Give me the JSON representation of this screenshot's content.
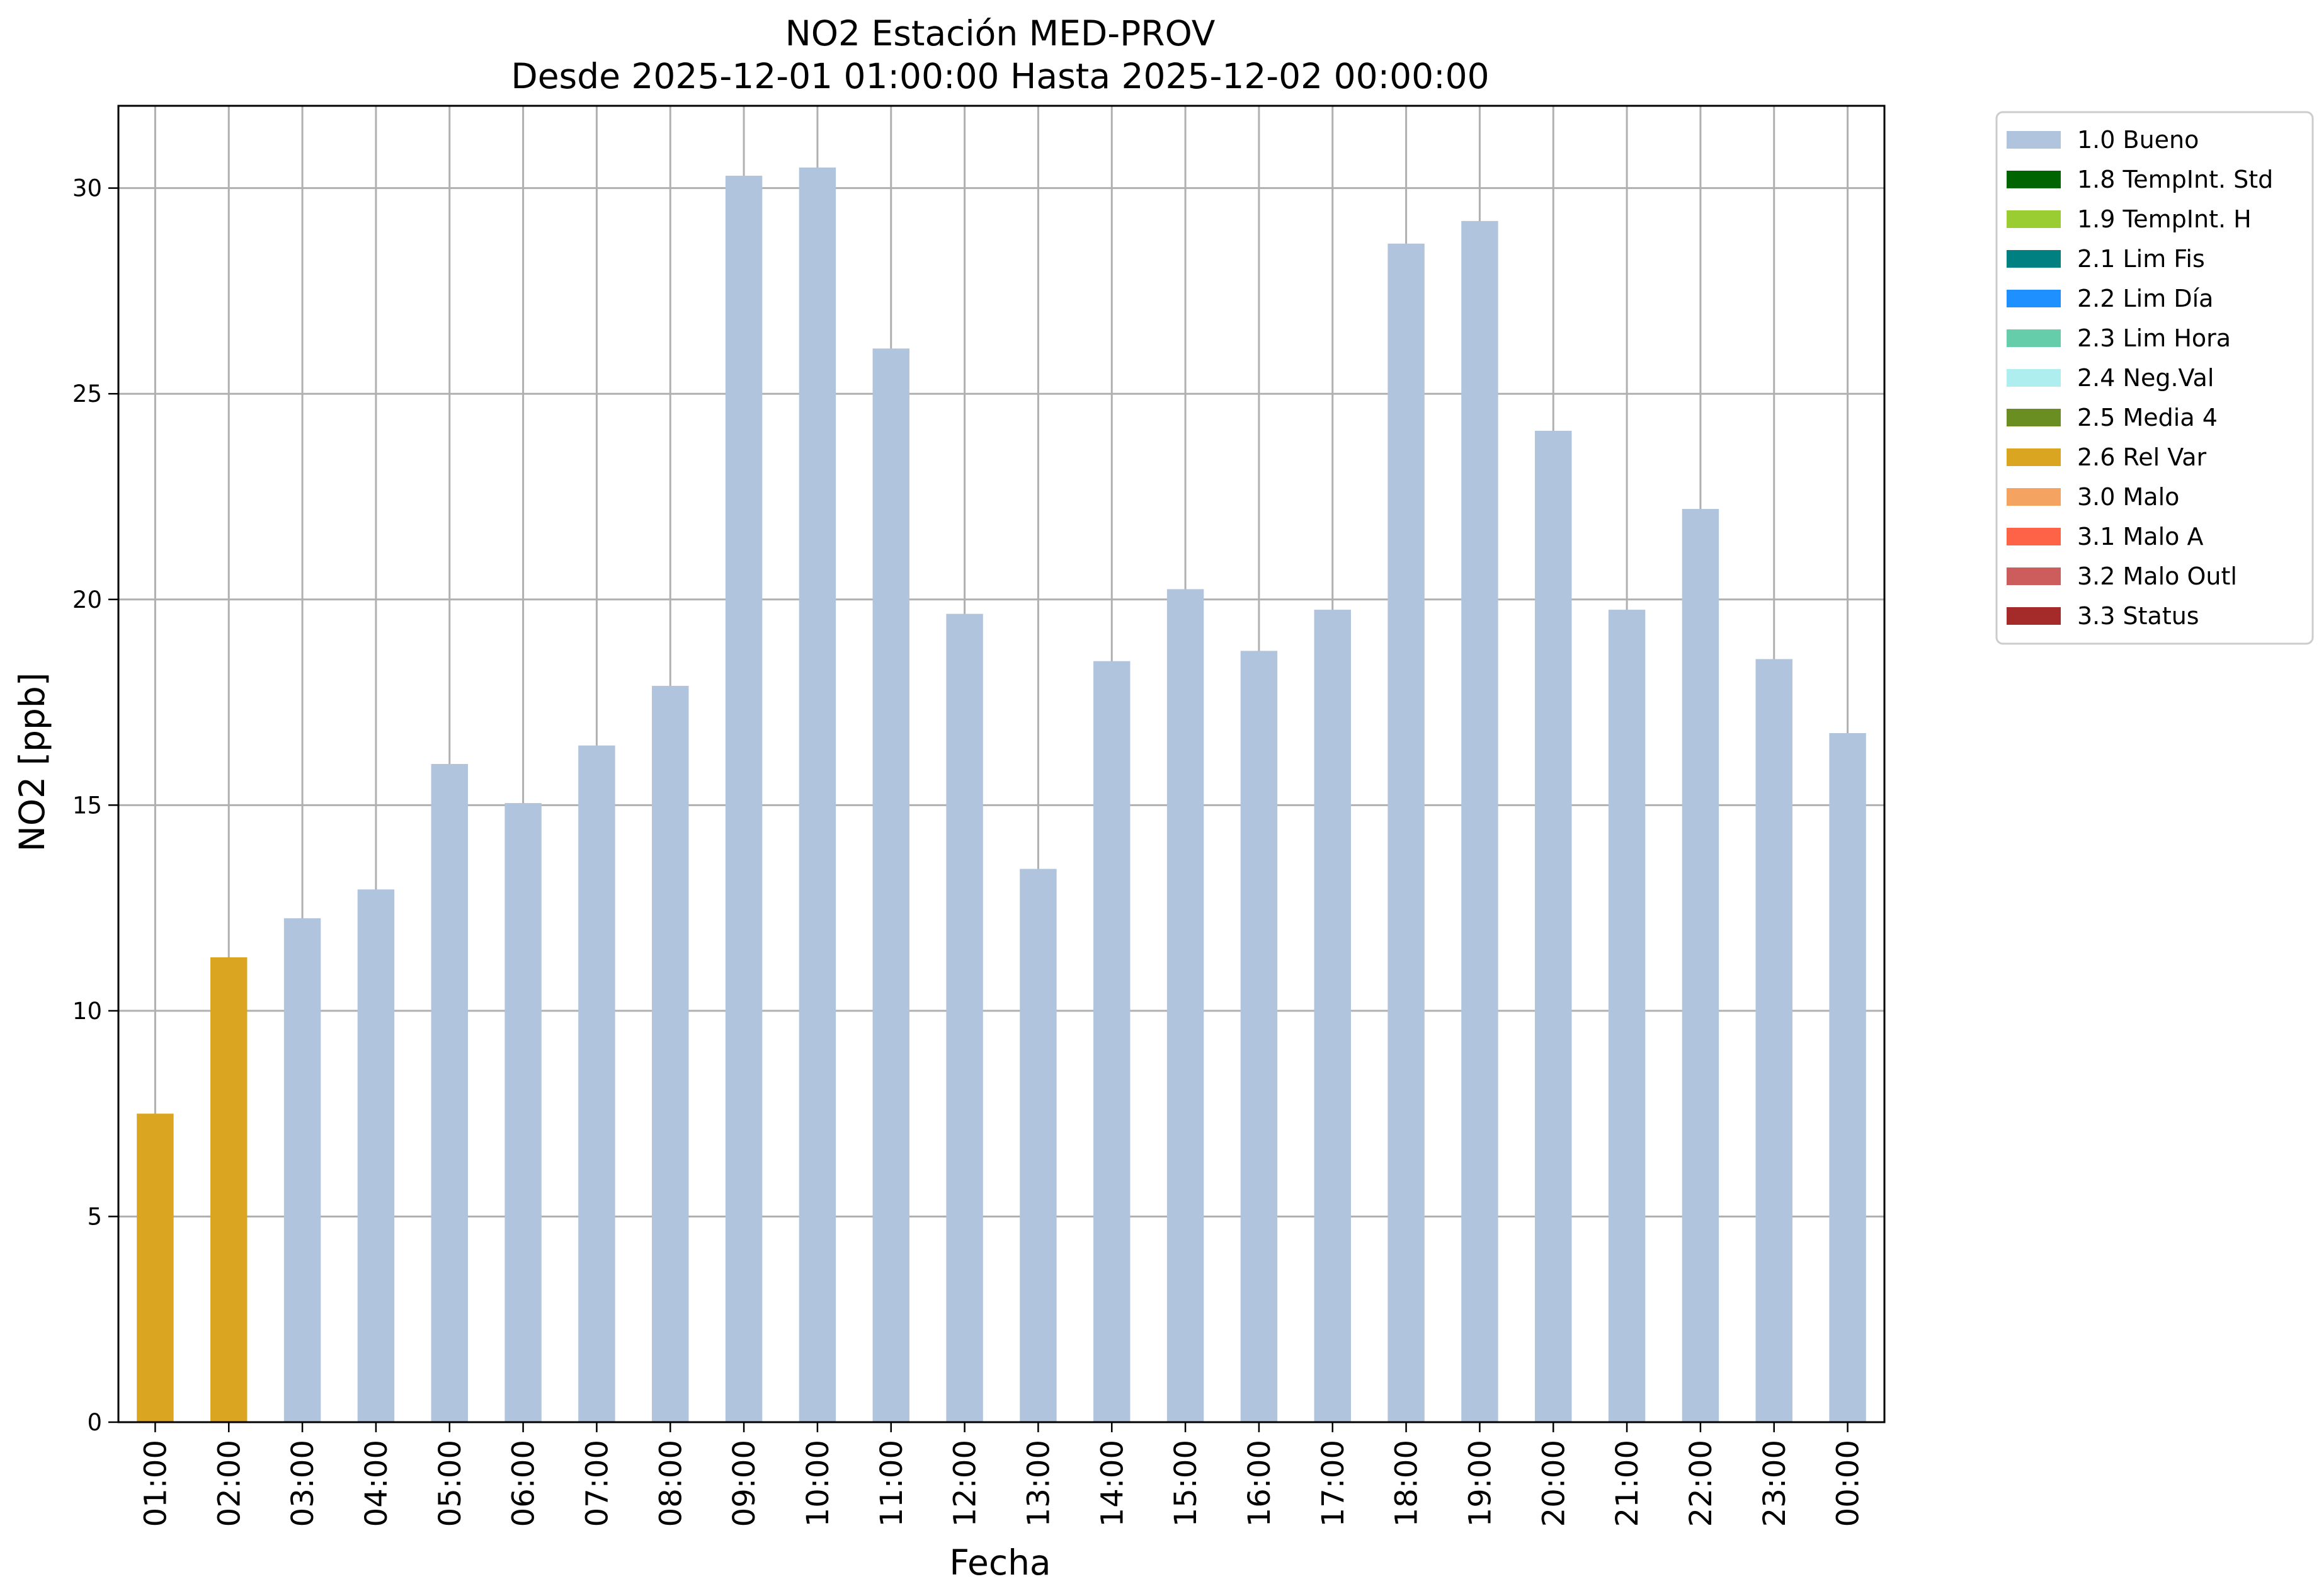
{
  "chart_data": {
    "type": "bar",
    "title": "NO2 Estación MED-PROV",
    "subtitle": "Desde 2025-12-01 01:00:00 Hasta 2025-12-02 00:00:00",
    "xlabel": "Fecha",
    "ylabel": "NO2 [ppb]",
    "ylim": [
      0,
      32
    ],
    "yticks": [
      0,
      5,
      10,
      15,
      20,
      25,
      30
    ],
    "grid": true,
    "legend_position": "outside-top-right",
    "categories": [
      "01:00",
      "02:00",
      "03:00",
      "04:00",
      "05:00",
      "06:00",
      "07:00",
      "08:00",
      "09:00",
      "10:00",
      "11:00",
      "12:00",
      "13:00",
      "14:00",
      "15:00",
      "16:00",
      "17:00",
      "18:00",
      "19:00",
      "20:00",
      "21:00",
      "22:00",
      "23:00",
      "00:00"
    ],
    "values": [
      7.5,
      11.3,
      12.25,
      12.95,
      16.0,
      15.05,
      16.45,
      17.9,
      30.3,
      30.5,
      26.1,
      19.65,
      13.45,
      18.5,
      20.25,
      18.75,
      19.75,
      28.65,
      29.2,
      24.1,
      19.75,
      22.2,
      18.55,
      16.75
    ],
    "bar_flags": [
      "2.6 Rel Var",
      "2.6 Rel Var",
      "1.0 Bueno",
      "1.0 Bueno",
      "1.0 Bueno",
      "1.0 Bueno",
      "1.0 Bueno",
      "1.0 Bueno",
      "1.0 Bueno",
      "1.0 Bueno",
      "1.0 Bueno",
      "1.0 Bueno",
      "1.0 Bueno",
      "1.0 Bueno",
      "1.0 Bueno",
      "1.0 Bueno",
      "1.0 Bueno",
      "1.0 Bueno",
      "1.0 Bueno",
      "1.0 Bueno",
      "1.0 Bueno",
      "1.0 Bueno",
      "1.0 Bueno",
      "1.0 Bueno"
    ],
    "legend": [
      {
        "label": "1.0 Bueno",
        "color": "#b0c4de"
      },
      {
        "label": "1.8 TempInt. Std",
        "color": "#006400"
      },
      {
        "label": "1.9 TempInt. H",
        "color": "#9acd32"
      },
      {
        "label": "2.1 Lim Fis",
        "color": "#008080"
      },
      {
        "label": "2.2 Lim Día",
        "color": "#1e90ff"
      },
      {
        "label": "2.3 Lim Hora",
        "color": "#66cdaa"
      },
      {
        "label": "2.4 Neg.Val",
        "color": "#afeeee"
      },
      {
        "label": "2.5 Media 4",
        "color": "#6b8e23"
      },
      {
        "label": "2.6 Rel Var",
        "color": "#daa520"
      },
      {
        "label": "3.0 Malo",
        "color": "#f4a460"
      },
      {
        "label": "3.1 Malo A",
        "color": "#ff6347"
      },
      {
        "label": "3.2 Malo Outl",
        "color": "#cd5c5c"
      },
      {
        "label": "3.3 Status",
        "color": "#a52a2a"
      }
    ]
  }
}
